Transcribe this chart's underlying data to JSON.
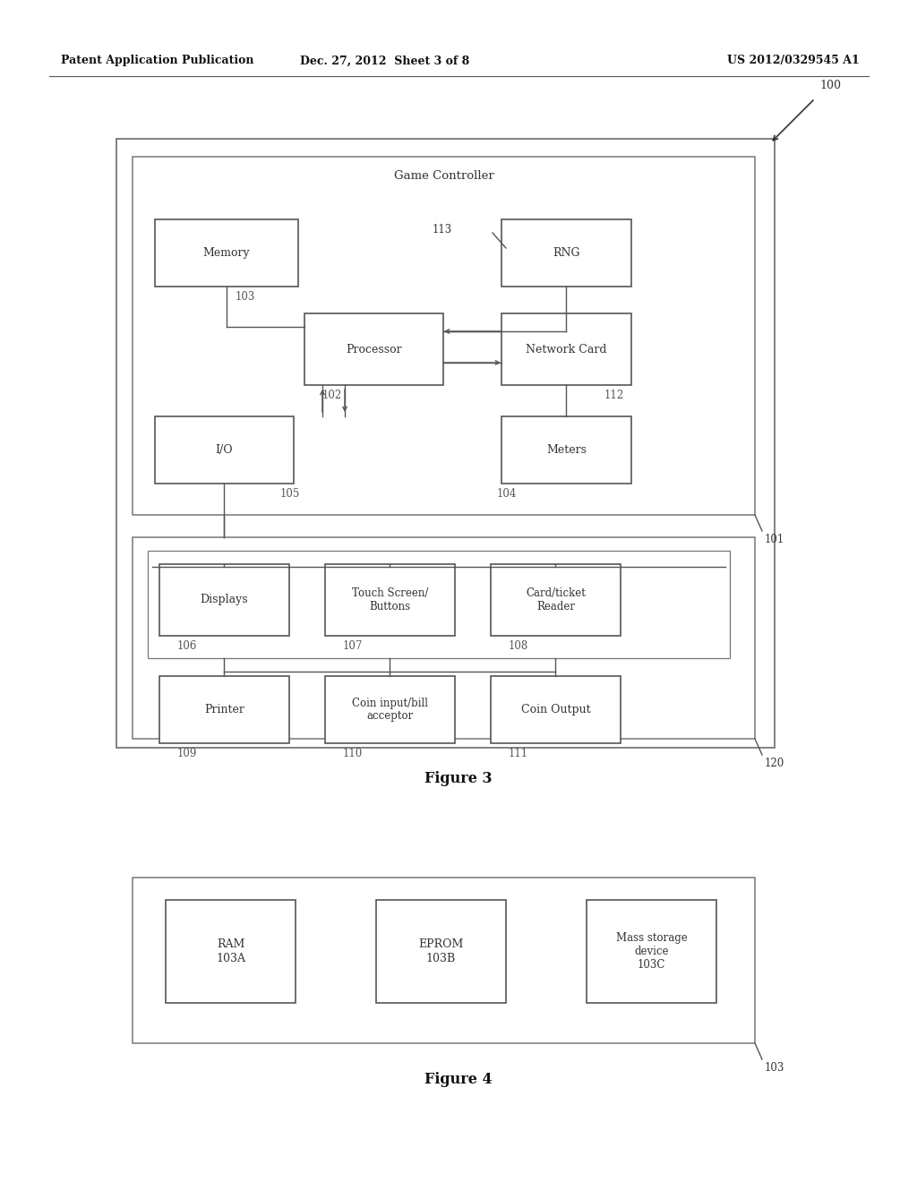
{
  "bg_color": "#ffffff",
  "header_left": "Patent Application Publication",
  "header_center": "Dec. 27, 2012  Sheet 3 of 8",
  "header_right": "US 2012/0329545 A1",
  "fig3_title": "Figure 3",
  "fig4_title": "Figure 4",
  "text_color": "#333333",
  "line_color": "#555555",
  "box_edge_color": "#555555",
  "outer_box_color": "#666666",
  "label_color": "#555555"
}
